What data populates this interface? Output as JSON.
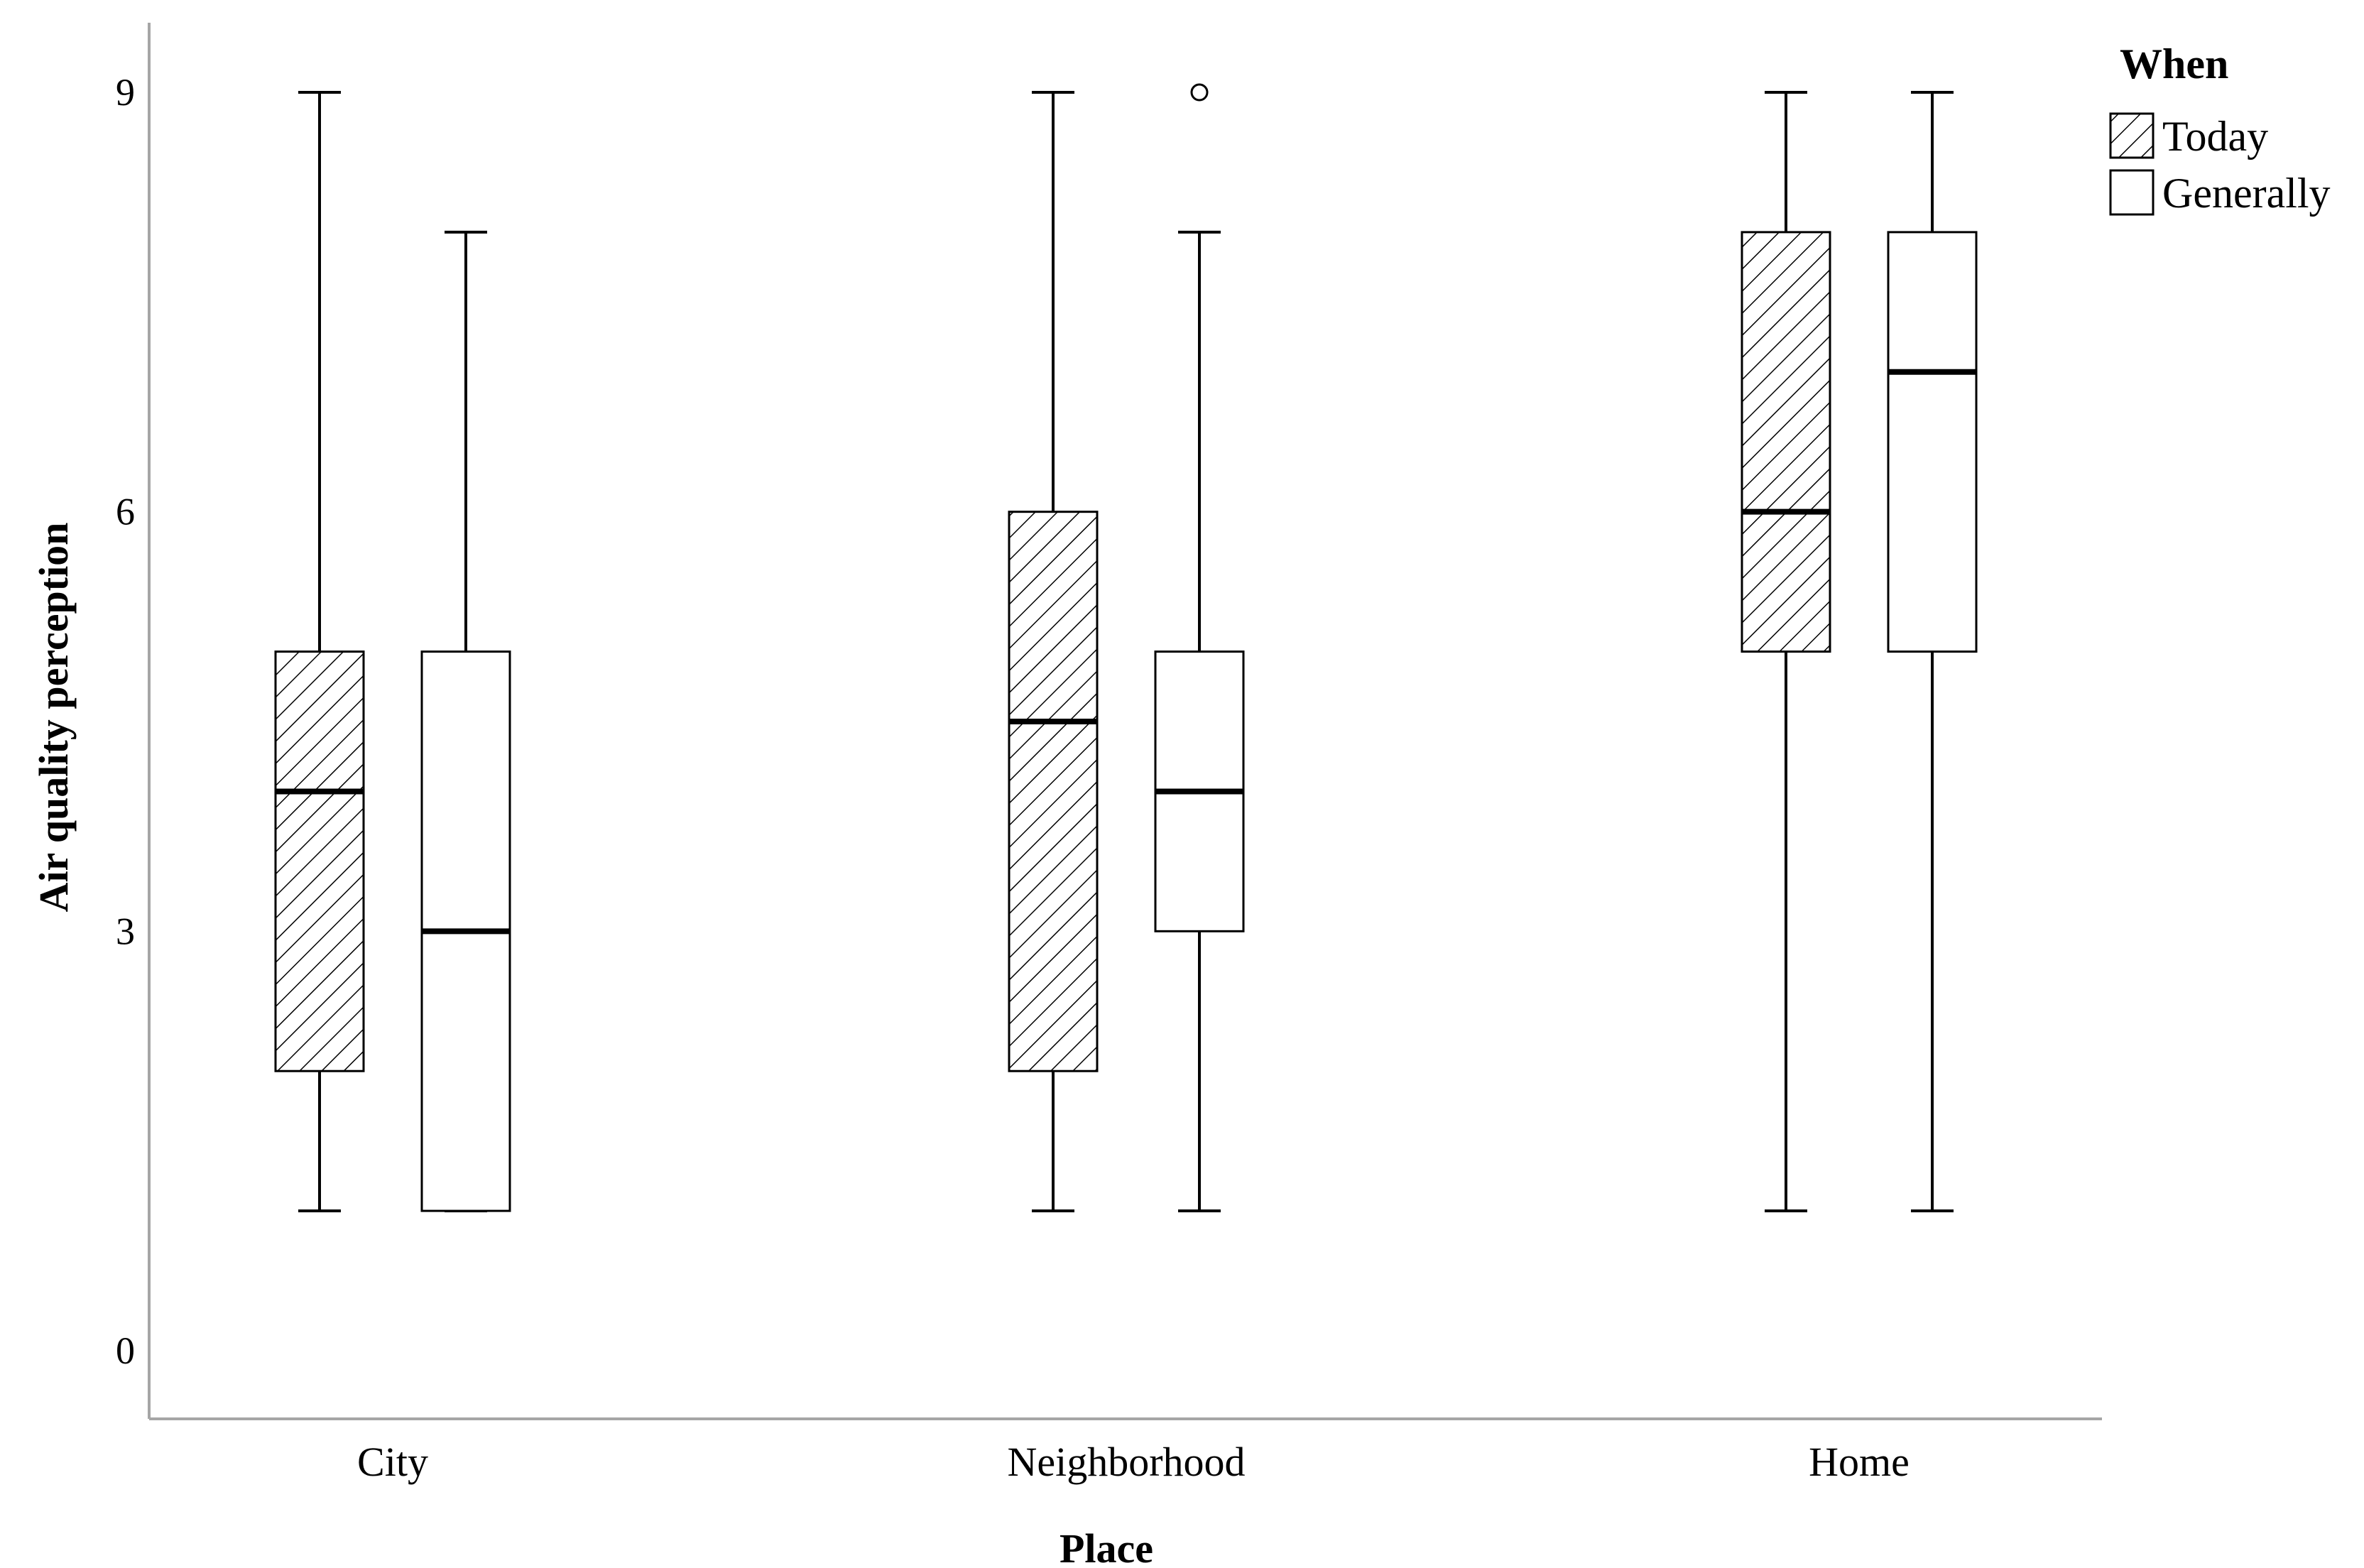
{
  "chart_data": {
    "type": "boxplot",
    "title": "",
    "xlabel": "Place",
    "ylabel": "Air quality perception",
    "ylim": [
      -0.5,
      9.5
    ],
    "yticks": [
      0,
      3,
      6,
      9
    ],
    "categories": [
      "City",
      "Neighborhood",
      "Home"
    ],
    "legend": {
      "title": "When",
      "placement": "top-right",
      "entries": [
        {
          "name": "Today",
          "pattern": "hatched"
        },
        {
          "name": "Generally",
          "pattern": "plain"
        }
      ]
    },
    "series": [
      {
        "name": "Today",
        "pattern": "hatched",
        "boxes": [
          {
            "category": "City",
            "whisker_low": 1,
            "q1": 2,
            "median": 4,
            "q3": 5,
            "whisker_high": 9,
            "outliers": []
          },
          {
            "category": "Neighborhood",
            "whisker_low": 1,
            "q1": 2,
            "median": 4.5,
            "q3": 6,
            "whisker_high": 9,
            "outliers": []
          },
          {
            "category": "Home",
            "whisker_low": 1,
            "q1": 5,
            "median": 6,
            "q3": 8,
            "whisker_high": 9,
            "outliers": []
          }
        ]
      },
      {
        "name": "Generally",
        "pattern": "plain",
        "boxes": [
          {
            "category": "City",
            "whisker_low": 1,
            "q1": 1,
            "median": 3,
            "q3": 5,
            "whisker_high": 8,
            "outliers": []
          },
          {
            "category": "Neighborhood",
            "whisker_low": 1,
            "q1": 3,
            "median": 4,
            "q3": 5,
            "whisker_high": 8,
            "outliers": [
              9
            ]
          },
          {
            "category": "Home",
            "whisker_low": 1,
            "q1": 5,
            "median": 7,
            "q3": 8,
            "whisker_high": 9,
            "outliers": []
          }
        ]
      }
    ],
    "colors": {
      "stroke": "#000000",
      "fill": "#ffffff",
      "axis": "#a6a6a6"
    }
  }
}
